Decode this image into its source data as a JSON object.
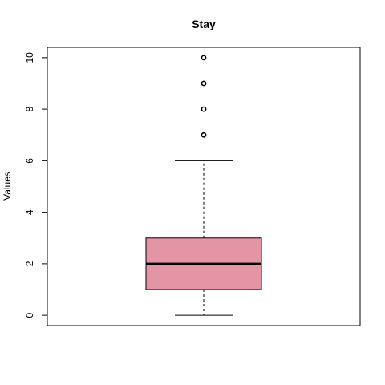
{
  "chart_data": {
    "type": "boxplot",
    "title": "Stay",
    "xlabel": "",
    "ylabel": "Values",
    "ylim": [
      -0.4,
      10.4
    ],
    "yticks": [
      0,
      2,
      4,
      6,
      8,
      10
    ],
    "box": {
      "whisker_low": 0,
      "q1": 1,
      "median": 2,
      "q3": 3,
      "whisker_high": 6,
      "outliers": [
        7,
        8,
        9,
        10
      ],
      "color": "#e495a5"
    },
    "grid": false
  }
}
